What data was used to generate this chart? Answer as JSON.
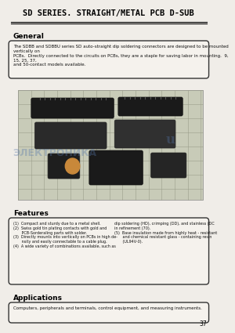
{
  "title": "SD SERIES. STRAIGHT/METAL PCB D-SUB",
  "bg_color": "#f0ede8",
  "page_number": "37",
  "general_title": "General",
  "general_text": "The SDBB and SDBBU series SD auto-straight dip soldering connectors are designed to be mounted vertically on\nPCBs.  Directly connected to the circuits on PCBs, they are a staple for saving labor in mounting.  9, 15, 25, 37,\nand 50-contact models available.",
  "features_title": "Features",
  "features_text_left": "(1)  Compact and sturdy due to a metal shell.\n(2)  Swiss gold tin plating contacts with gold and\n       PCB-Sorderaling parts with solder.\n(3)  Directly mounts into vertically on PCBs in high de-\n       nsity and easily connectable to a cable plug.\n(4)  A wide variety of combinations available, such as",
  "features_text_right": "dip soldering (HD), crimping (DD), and stainless (DC\nin refinement (70).\n(5)  Base insulation made from highly heat - resistant\n       and chemical resistant glass - containing resin\n       (UL94V-0).",
  "applications_title": "Applications",
  "applications_text": "Computers, peripherals and terminals, control equipment, and measuring instruments.",
  "watermark_text": "ЭЛЕКТРОНИКА",
  "watermark_text2": "u",
  "image_bg": "#d8d4c8"
}
